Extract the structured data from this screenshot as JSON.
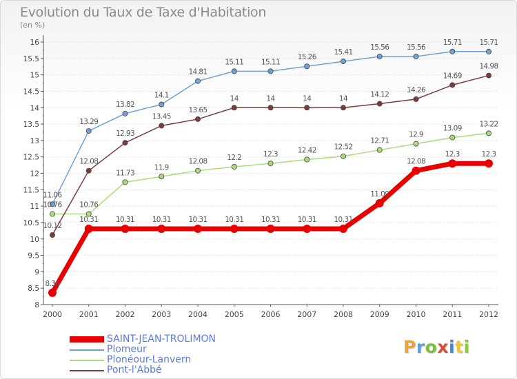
{
  "title": "Evolution du Taux de Taxe d'Habitation",
  "unit_label": "(en %)",
  "logo": {
    "letters": [
      "P",
      "r",
      "o",
      "x",
      "i",
      "t",
      "i"
    ],
    "colors": [
      "#e8a33a",
      "#5aa0d8",
      "#7dbb3c",
      "#d94c3c",
      "#3d8bd1",
      "#f0c43c",
      "#8dc63f"
    ]
  },
  "chart_data": {
    "type": "line",
    "title": "Evolution du Taux de Taxe d'Habitation",
    "ylabel": "(en %)",
    "xlabel": "",
    "x": [
      "2000",
      "2001",
      "2002",
      "2003",
      "2004",
      "2005",
      "2006",
      "2007",
      "2008",
      "2009",
      "2010",
      "2011",
      "2012"
    ],
    "ylim": [
      8,
      16
    ],
    "yticks": [
      "8",
      "8.5",
      "9",
      "9.5",
      "10",
      "10.5",
      "11",
      "11.5",
      "12",
      "12.5",
      "13",
      "13.5",
      "14",
      "14.5",
      "15",
      "15.5",
      "16"
    ],
    "grid": "horizontal",
    "legend_position": "bottom-left",
    "series": [
      {
        "name": "SAINT-JEAN-TROLIMON",
        "color": "#e80000",
        "width": 7,
        "values": [
          8.36,
          10.31,
          10.31,
          10.31,
          10.31,
          10.31,
          10.31,
          10.31,
          10.31,
          11.09,
          12.08,
          12.3,
          12.3
        ],
        "labels": [
          "8.36",
          "10.31",
          "10.31",
          "10.31",
          "10.31",
          "10.31",
          "10.31",
          "10.31",
          "10.31",
          "11.09",
          "12.08",
          "12.3",
          "12.3"
        ]
      },
      {
        "name": "Plomeur",
        "color": "#6fa2d4",
        "width": 1.5,
        "values": [
          11.06,
          13.29,
          13.82,
          14.1,
          14.81,
          15.11,
          15.11,
          15.26,
          15.41,
          15.56,
          15.56,
          15.71,
          15.71
        ],
        "labels": [
          "11.06",
          "13.29",
          "13.82",
          "14.1",
          "14.81",
          "15.11",
          "15.11",
          "15.26",
          "15.41",
          "15.56",
          "15.56",
          "15.71",
          "15.71"
        ]
      },
      {
        "name": "Ploneour-Lanvern",
        "color": "#a9db7c",
        "width": 1.5,
        "values": [
          10.76,
          10.76,
          11.73,
          11.9,
          12.08,
          12.2,
          12.3,
          12.42,
          12.52,
          12.71,
          12.9,
          13.09,
          13.22
        ],
        "labels": [
          "10.76",
          "10.76",
          "11.73",
          "11.9",
          "12.08",
          "12.2",
          "12.3",
          "12.42",
          "12.52",
          "12.71",
          "12.9",
          "13.09",
          "13.22"
        ]
      },
      {
        "name": "Pont-l'Abbé",
        "color": "#7a3b3b",
        "width": 1.5,
        "values": [
          10.12,
          12.08,
          12.93,
          13.45,
          13.65,
          14,
          14,
          14,
          14,
          14.12,
          14.26,
          14.69,
          14.98
        ],
        "labels": [
          "10.12",
          "12.08",
          "12.93",
          "13.45",
          "13.65",
          "14",
          "14",
          "14",
          "14",
          "14.12",
          "14.26",
          "14.69",
          "14.98"
        ]
      }
    ]
  },
  "legend": [
    {
      "label": "SAINT-JEAN-TROLIMON"
    },
    {
      "label": "Plomeur"
    },
    {
      "label": "Plonéour-Lanvern"
    },
    {
      "label": "Pont-l'Abbé"
    }
  ]
}
